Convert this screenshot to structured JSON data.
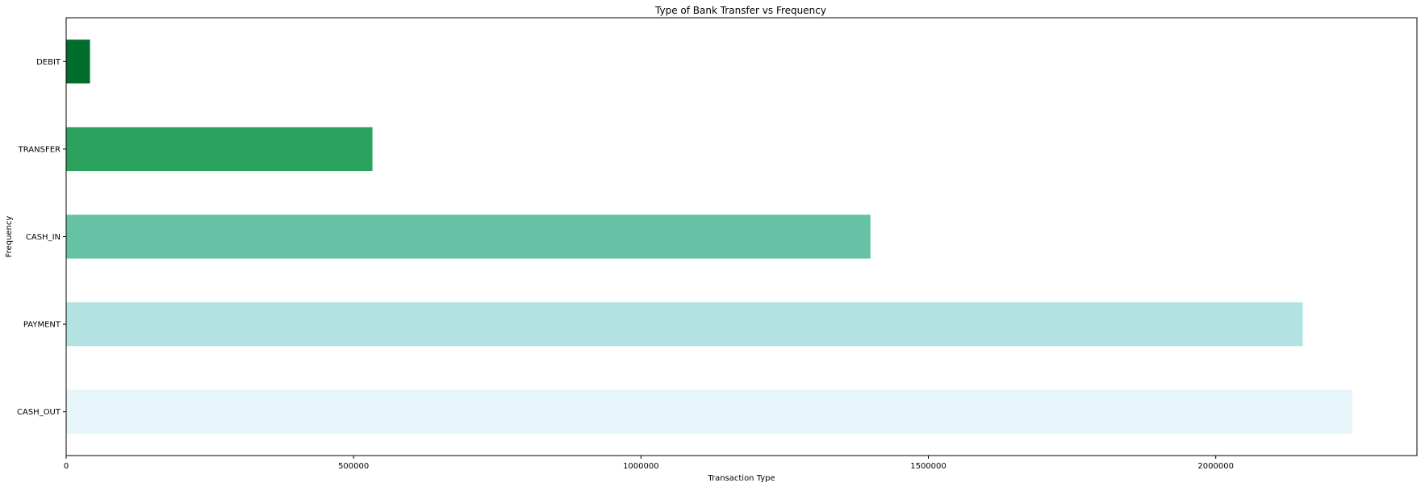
{
  "chart_data": {
    "type": "bar",
    "orientation": "horizontal",
    "title": "Type of Bank Transfer vs Frequency",
    "xlabel": "Transaction Type",
    "ylabel": "Frequency",
    "categories": [
      "CASH_OUT",
      "PAYMENT",
      "CASH_IN",
      "TRANSFER",
      "DEBIT"
    ],
    "values": [
      2237500,
      2151495,
      1399284,
      532909,
      41432
    ],
    "colors": [
      "#e5f5f9",
      "#b2e2e2",
      "#66c2a4",
      "#2ca25f",
      "#006d2c"
    ],
    "xlim": [
      0,
      2350000
    ],
    "xticks": [
      0,
      500000,
      1000000,
      1500000,
      2000000
    ],
    "xtick_labels": [
      "0",
      "500000",
      "1000000",
      "1500000",
      "2000000"
    ],
    "grid": false,
    "legend": "none"
  }
}
